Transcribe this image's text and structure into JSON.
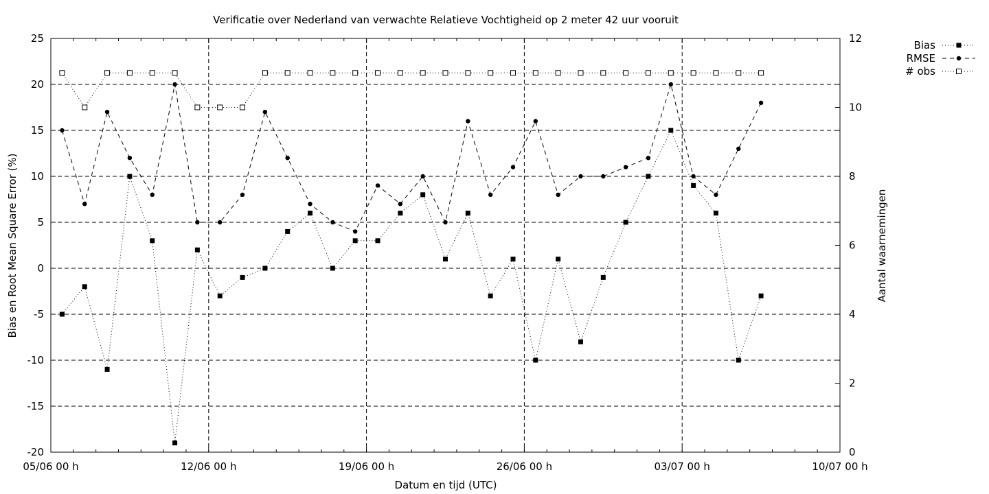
{
  "chart_data": {
    "type": "line",
    "title": "Verificatie over Nederland van verwachte Relatieve Vochtigheid op 2 meter 42 uur vooruit",
    "xlabel": "Datum en tijd (UTC)",
    "ylabel": "Bias en Root Mean Square Error (%)",
    "y2label": "Aantal waarnemingen",
    "xlim": [
      "2023-06-05",
      "2023-07-10"
    ],
    "ylim": [
      -20,
      25
    ],
    "y2lim": [
      0,
      12
    ],
    "grid": true,
    "legend_position": "top-right",
    "x_tick_labels": [
      "05/06 00 h",
      "12/06 00 h",
      "19/06 00 h",
      "26/06 00 h",
      "03/07 00 h",
      "10/07 00 h"
    ],
    "y_tick_labels": [
      "-20",
      "-15",
      "-10",
      "-5",
      "0",
      "5",
      "10",
      "15",
      "20",
      "25"
    ],
    "y2_tick_labels": [
      "0",
      "2",
      "4",
      "6",
      "8",
      "10",
      "12"
    ],
    "x": [
      "2023-06-05 12:00",
      "2023-06-06 12:00",
      "2023-06-07 12:00",
      "2023-06-08 12:00",
      "2023-06-09 12:00",
      "2023-06-10 12:00",
      "2023-06-11 12:00",
      "2023-06-12 12:00",
      "2023-06-13 12:00",
      "2023-06-14 12:00",
      "2023-06-15 12:00",
      "2023-06-16 12:00",
      "2023-06-17 12:00",
      "2023-06-18 12:00",
      "2023-06-19 12:00",
      "2023-06-20 12:00",
      "2023-06-21 12:00",
      "2023-06-22 12:00",
      "2023-06-23 12:00",
      "2023-06-24 12:00",
      "2023-06-25 12:00",
      "2023-06-26 12:00",
      "2023-06-27 12:00",
      "2023-06-28 12:00",
      "2023-06-29 12:00",
      "2023-06-30 12:00",
      "2023-07-01 12:00",
      "2023-07-02 12:00",
      "2023-07-03 12:00",
      "2023-07-04 12:00",
      "2023-07-05 12:00",
      "2023-07-06 12:00"
    ],
    "series": [
      {
        "name": "Bias",
        "axis": "left",
        "marker": "filled-square",
        "line": "dotted",
        "values": [
          -5,
          -2,
          -11,
          10,
          3,
          -19,
          2,
          -3,
          -1,
          0,
          4,
          6,
          0,
          3,
          3,
          6,
          8,
          1,
          6,
          -3,
          1,
          -10,
          1,
          -8,
          -1,
          5,
          10,
          15,
          9,
          6,
          -10,
          -3
        ]
      },
      {
        "name": "RMSE",
        "axis": "left",
        "marker": "filled-circle",
        "line": "dashed",
        "values": [
          15,
          7,
          17,
          12,
          8,
          20,
          5,
          5,
          8,
          17,
          12,
          7,
          5,
          4,
          9,
          7,
          10,
          5,
          16,
          8,
          11,
          16,
          8,
          10,
          10,
          11,
          12,
          20,
          10,
          8,
          13,
          18
        ]
      },
      {
        "name": "# obs",
        "axis": "right",
        "marker": "open-square",
        "line": "dotted",
        "values": [
          11,
          10,
          11,
          11,
          11,
          11,
          10,
          10,
          10,
          11,
          11,
          11,
          11,
          11,
          11,
          11,
          11,
          11,
          11,
          11,
          11,
          11,
          11,
          11,
          11,
          11,
          11,
          11,
          11,
          11,
          11,
          11
        ]
      }
    ]
  }
}
